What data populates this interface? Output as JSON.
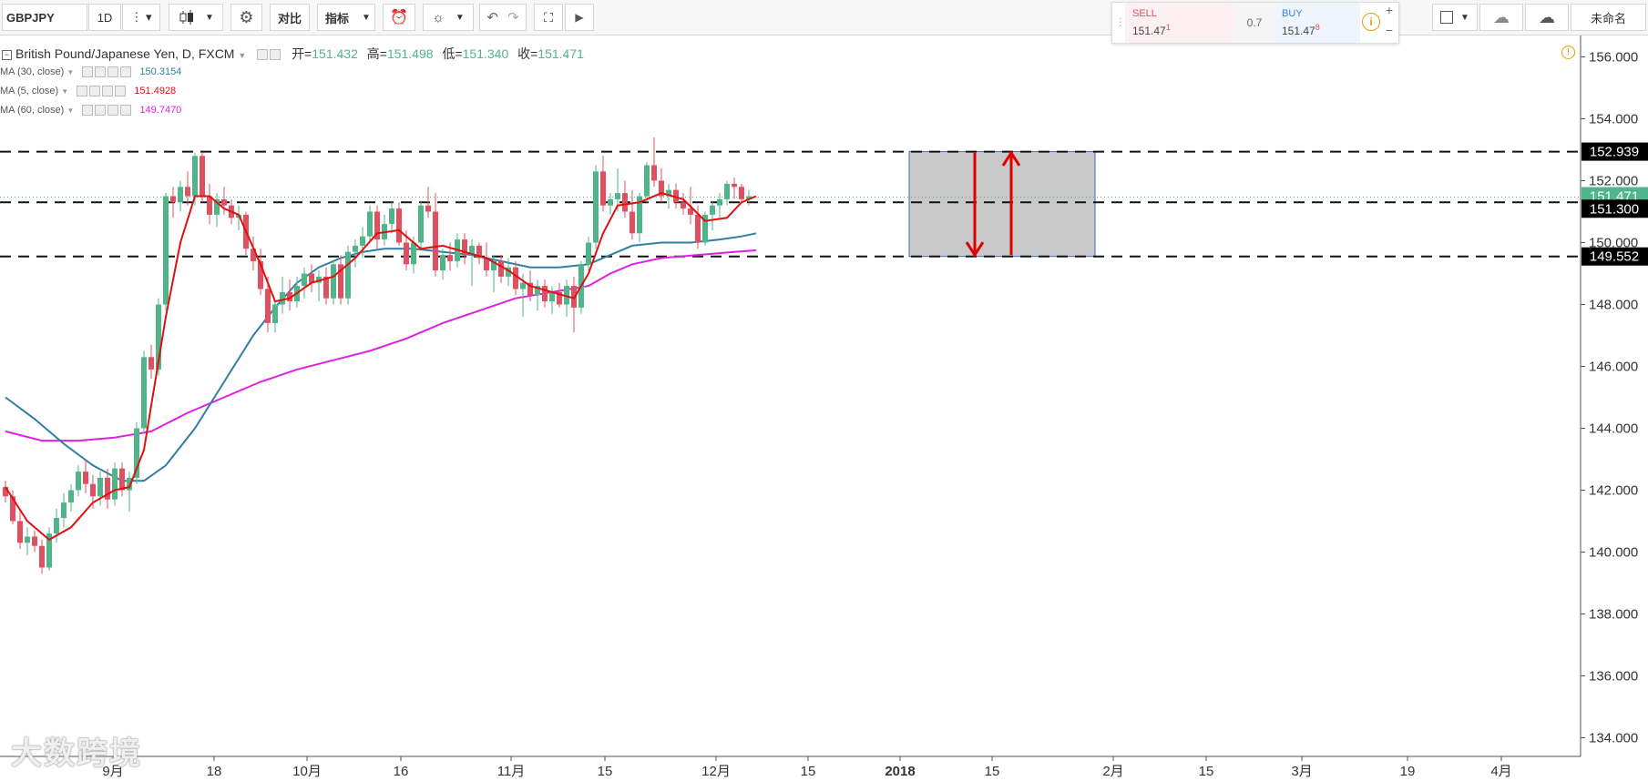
{
  "toolbar": {
    "symbol": "GBPJPY",
    "interval": "1D",
    "compare_label": "对比",
    "indicators_label": "指标",
    "layout_name": "未命名"
  },
  "trade": {
    "sell_label": "SELL",
    "sell_price_main": "151.47",
    "sell_price_sup": "1",
    "spread": "0.7",
    "buy_label": "BUY",
    "buy_price_main": "151.47",
    "buy_price_sup": "8"
  },
  "legend": {
    "title": "British Pound/Japanese Yen, D, FXCM",
    "open_label": "开=",
    "open": "151.432",
    "high_label": "高=",
    "high": "151.498",
    "low_label": "低=",
    "low": "151.340",
    "close_label": "收=",
    "close": "151.471"
  },
  "indicators": [
    {
      "label": "MA (30, close)",
      "value": "150.3154",
      "color": "#2e7fa3"
    },
    {
      "label": "MA (5, close)",
      "value": "151.4928",
      "color": "#e01010"
    },
    {
      "label": "MA (60, close)",
      "value": "149.7470",
      "color": "#e020e0"
    }
  ],
  "price_axis": {
    "ticks": [
      "156.000",
      "154.000",
      "152.000",
      "150.000",
      "148.000",
      "146.000",
      "144.000",
      "142.000",
      "140.000",
      "138.000",
      "136.000",
      "134.000"
    ],
    "labels": [
      {
        "text": "152.939",
        "bg": "#000000",
        "color": "#ffffff"
      },
      {
        "text": "151.471",
        "bg": "#4fb58a",
        "color": "#ffffff"
      },
      {
        "text": "151.300",
        "bg": "#000000",
        "color": "#ffffff"
      },
      {
        "text": "149.552",
        "bg": "#000000",
        "color": "#ffffff"
      }
    ]
  },
  "time_axis": {
    "labels": [
      "9月",
      "18",
      "10月",
      "16",
      "11月",
      "15",
      "12月",
      "15",
      "2018",
      "15",
      "2月",
      "15",
      "3月",
      "19",
      "4月"
    ]
  },
  "colors": {
    "up": "#4fb58a",
    "down": "#e05060",
    "ma5": "#e01010",
    "ma30": "#2e7fa3",
    "ma60": "#e020e0"
  },
  "watermark": "大数跨境",
  "chart_data": {
    "type": "candlestick",
    "title": "British Pound/Japanese Yen, D, FXCM",
    "ylim": [
      134,
      156
    ],
    "horizontal_levels": [
      152.939,
      151.3,
      149.552
    ],
    "last_price": 151.471,
    "candles": [
      [
        142.1,
        142.3,
        141.6,
        141.8
      ],
      [
        141.8,
        142.0,
        140.9,
        141.0
      ],
      [
        141.0,
        141.3,
        140.1,
        140.3
      ],
      [
        140.3,
        140.8,
        139.9,
        140.5
      ],
      [
        140.5,
        140.7,
        140.0,
        140.2
      ],
      [
        140.2,
        140.4,
        139.3,
        139.5
      ],
      [
        139.5,
        140.8,
        139.4,
        140.6
      ],
      [
        140.6,
        141.4,
        140.3,
        141.1
      ],
      [
        141.1,
        141.9,
        140.8,
        141.6
      ],
      [
        141.6,
        142.2,
        141.3,
        142.0
      ],
      [
        142.0,
        142.8,
        141.8,
        142.6
      ],
      [
        142.6,
        143.0,
        141.9,
        142.2
      ],
      [
        142.2,
        142.5,
        141.4,
        141.8
      ],
      [
        141.8,
        142.6,
        141.5,
        142.4
      ],
      [
        142.4,
        142.7,
        141.4,
        141.7
      ],
      [
        141.7,
        142.9,
        141.5,
        142.7
      ],
      [
        142.7,
        142.9,
        141.8,
        142.0
      ],
      [
        142.0,
        142.6,
        141.3,
        142.4
      ],
      [
        142.4,
        144.2,
        142.2,
        144.0
      ],
      [
        144.0,
        146.5,
        143.8,
        146.3
      ],
      [
        146.3,
        146.7,
        145.6,
        145.9
      ],
      [
        145.9,
        148.2,
        145.7,
        148.0
      ],
      [
        148.0,
        151.6,
        147.8,
        151.5
      ],
      [
        151.5,
        151.8,
        150.8,
        151.3
      ],
      [
        151.3,
        152.0,
        151.0,
        151.8
      ],
      [
        151.8,
        152.3,
        151.2,
        151.5
      ],
      [
        151.5,
        152.9,
        151.2,
        152.8
      ],
      [
        152.8,
        152.9,
        151.3,
        151.5
      ],
      [
        151.5,
        151.9,
        150.6,
        150.9
      ],
      [
        150.9,
        151.6,
        150.5,
        151.4
      ],
      [
        151.4,
        151.8,
        150.9,
        151.2
      ],
      [
        151.2,
        151.4,
        150.6,
        150.8
      ],
      [
        150.8,
        151.2,
        150.4,
        150.9
      ],
      [
        150.9,
        151.0,
        149.6,
        149.8
      ],
      [
        149.8,
        150.2,
        149.1,
        149.4
      ],
      [
        149.4,
        149.8,
        148.3,
        148.5
      ],
      [
        148.5,
        148.9,
        147.1,
        147.4
      ],
      [
        147.4,
        148.1,
        147.1,
        148.0
      ],
      [
        148.0,
        148.9,
        147.7,
        148.4
      ],
      [
        148.4,
        148.8,
        147.8,
        148.1
      ],
      [
        148.1,
        148.9,
        147.9,
        148.6
      ],
      [
        148.6,
        149.2,
        148.2,
        149.0
      ],
      [
        149.0,
        149.3,
        148.4,
        148.7
      ],
      [
        148.7,
        149.1,
        148.1,
        148.9
      ],
      [
        148.9,
        149.2,
        148.0,
        148.2
      ],
      [
        148.2,
        149.4,
        148.0,
        149.3
      ],
      [
        149.3,
        149.6,
        148.0,
        148.2
      ],
      [
        148.2,
        149.9,
        148.0,
        149.7
      ],
      [
        149.7,
        150.1,
        149.2,
        149.9
      ],
      [
        149.9,
        150.5,
        149.5,
        150.2
      ],
      [
        150.2,
        151.2,
        150.0,
        151.0
      ],
      [
        151.0,
        151.2,
        149.8,
        150.1
      ],
      [
        150.1,
        150.9,
        149.9,
        150.6
      ],
      [
        150.6,
        151.3,
        150.3,
        151.1
      ],
      [
        151.1,
        151.3,
        149.9,
        150.0
      ],
      [
        150.0,
        150.4,
        149.1,
        149.3
      ],
      [
        149.3,
        150.2,
        149.0,
        150.0
      ],
      [
        150.0,
        151.3,
        149.8,
        151.2
      ],
      [
        151.2,
        151.8,
        150.8,
        151.0
      ],
      [
        151.0,
        151.6,
        148.9,
        149.1
      ],
      [
        149.1,
        149.8,
        148.8,
        149.6
      ],
      [
        149.6,
        150.0,
        149.1,
        149.4
      ],
      [
        149.4,
        150.3,
        149.2,
        150.1
      ],
      [
        150.1,
        150.3,
        149.3,
        149.6
      ],
      [
        149.6,
        150.1,
        148.6,
        149.9
      ],
      [
        149.9,
        150.0,
        149.3,
        149.5
      ],
      [
        149.5,
        150.0,
        148.9,
        149.1
      ],
      [
        149.1,
        149.6,
        148.4,
        149.4
      ],
      [
        149.4,
        149.6,
        148.7,
        148.9
      ],
      [
        148.9,
        149.5,
        148.6,
        149.2
      ],
      [
        149.2,
        149.4,
        148.3,
        148.5
      ],
      [
        148.5,
        149.0,
        147.6,
        148.7
      ],
      [
        148.7,
        149.1,
        148.1,
        148.3
      ],
      [
        148.3,
        148.8,
        147.8,
        148.6
      ],
      [
        148.6,
        148.8,
        147.9,
        148.1
      ],
      [
        148.1,
        148.6,
        147.7,
        148.4
      ],
      [
        148.4,
        148.7,
        147.9,
        148.0
      ],
      [
        148.0,
        148.8,
        147.6,
        148.6
      ],
      [
        148.6,
        148.9,
        147.1,
        147.9
      ],
      [
        147.9,
        149.4,
        147.7,
        149.3
      ],
      [
        149.3,
        150.2,
        149.1,
        150.0
      ],
      [
        150.0,
        152.5,
        149.8,
        152.3
      ],
      [
        152.3,
        152.8,
        151.0,
        151.2
      ],
      [
        151.2,
        151.6,
        150.9,
        151.4
      ],
      [
        151.4,
        152.4,
        151.0,
        151.6
      ],
      [
        151.6,
        152.0,
        150.8,
        151.0
      ],
      [
        151.0,
        151.7,
        150.1,
        150.3
      ],
      [
        150.3,
        151.6,
        150.0,
        151.5
      ],
      [
        151.5,
        152.6,
        151.3,
        152.5
      ],
      [
        152.5,
        153.4,
        151.8,
        152.0
      ],
      [
        152.0,
        152.4,
        151.3,
        151.5
      ],
      [
        151.5,
        151.9,
        151.1,
        151.7
      ],
      [
        151.7,
        151.9,
        151.1,
        151.3
      ],
      [
        151.3,
        151.6,
        150.9,
        151.1
      ],
      [
        151.1,
        151.8,
        150.6,
        150.9
      ],
      [
        150.9,
        151.2,
        149.8,
        150.0
      ],
      [
        150.0,
        151.0,
        149.9,
        150.9
      ],
      [
        150.9,
        151.3,
        150.4,
        151.2
      ],
      [
        151.2,
        151.6,
        150.8,
        151.4
      ],
      [
        151.4,
        152.0,
        151.2,
        151.9
      ],
      [
        151.9,
        152.1,
        151.4,
        151.8
      ],
      [
        151.8,
        151.9,
        151.3,
        151.4
      ],
      [
        151.4,
        151.7,
        151.2,
        151.5
      ]
    ],
    "ma5": [
      [
        0,
        142.1
      ],
      [
        3,
        141.0
      ],
      [
        6,
        140.4
      ],
      [
        9,
        140.8
      ],
      [
        12,
        141.6
      ],
      [
        15,
        142.0
      ],
      [
        17,
        142.1
      ],
      [
        19,
        143.3
      ],
      [
        22,
        147.6
      ],
      [
        24,
        150.0
      ],
      [
        26,
        151.5
      ],
      [
        28,
        151.5
      ],
      [
        30,
        151.1
      ],
      [
        32,
        150.9
      ],
      [
        35,
        149.3
      ],
      [
        37,
        148.1
      ],
      [
        39,
        148.2
      ],
      [
        42,
        148.7
      ],
      [
        45,
        148.9
      ],
      [
        48,
        149.5
      ],
      [
        51,
        150.3
      ],
      [
        54,
        150.4
      ],
      [
        57,
        149.8
      ],
      [
        60,
        149.9
      ],
      [
        63,
        149.7
      ],
      [
        66,
        149.5
      ],
      [
        69,
        149.1
      ],
      [
        72,
        148.6
      ],
      [
        75,
        148.4
      ],
      [
        78,
        148.2
      ],
      [
        80,
        149.0
      ],
      [
        82,
        150.3
      ],
      [
        84,
        151.2
      ],
      [
        87,
        151.3
      ],
      [
        90,
        151.6
      ],
      [
        93,
        151.4
      ],
      [
        96,
        150.7
      ],
      [
        99,
        150.8
      ],
      [
        101,
        151.3
      ],
      [
        103,
        151.5
      ]
    ],
    "ma30": [
      [
        0,
        145.0
      ],
      [
        4,
        144.3
      ],
      [
        8,
        143.5
      ],
      [
        12,
        142.8
      ],
      [
        16,
        142.3
      ],
      [
        19,
        142.3
      ],
      [
        22,
        142.8
      ],
      [
        26,
        144.0
      ],
      [
        30,
        145.5
      ],
      [
        34,
        147.0
      ],
      [
        37,
        147.9
      ],
      [
        40,
        148.7
      ],
      [
        43,
        149.2
      ],
      [
        46,
        149.5
      ],
      [
        49,
        149.7
      ],
      [
        52,
        149.8
      ],
      [
        56,
        149.8
      ],
      [
        60,
        149.7
      ],
      [
        64,
        149.6
      ],
      [
        68,
        149.4
      ],
      [
        72,
        149.2
      ],
      [
        76,
        149.2
      ],
      [
        80,
        149.3
      ],
      [
        83,
        149.6
      ],
      [
        86,
        149.9
      ],
      [
        90,
        150.0
      ],
      [
        94,
        150.0
      ],
      [
        98,
        150.1
      ],
      [
        101,
        150.2
      ],
      [
        103,
        150.3
      ]
    ],
    "ma60": [
      [
        0,
        143.9
      ],
      [
        5,
        143.6
      ],
      [
        10,
        143.6
      ],
      [
        15,
        143.7
      ],
      [
        20,
        143.9
      ],
      [
        25,
        144.5
      ],
      [
        30,
        145.0
      ],
      [
        35,
        145.5
      ],
      [
        40,
        145.9
      ],
      [
        45,
        146.2
      ],
      [
        50,
        146.5
      ],
      [
        55,
        146.9
      ],
      [
        60,
        147.4
      ],
      [
        65,
        147.8
      ],
      [
        70,
        148.2
      ],
      [
        75,
        148.4
      ],
      [
        80,
        148.6
      ],
      [
        83,
        149.0
      ],
      [
        86,
        149.3
      ],
      [
        90,
        149.5
      ],
      [
        95,
        149.6
      ],
      [
        100,
        149.7
      ],
      [
        103,
        149.75
      ]
    ]
  }
}
